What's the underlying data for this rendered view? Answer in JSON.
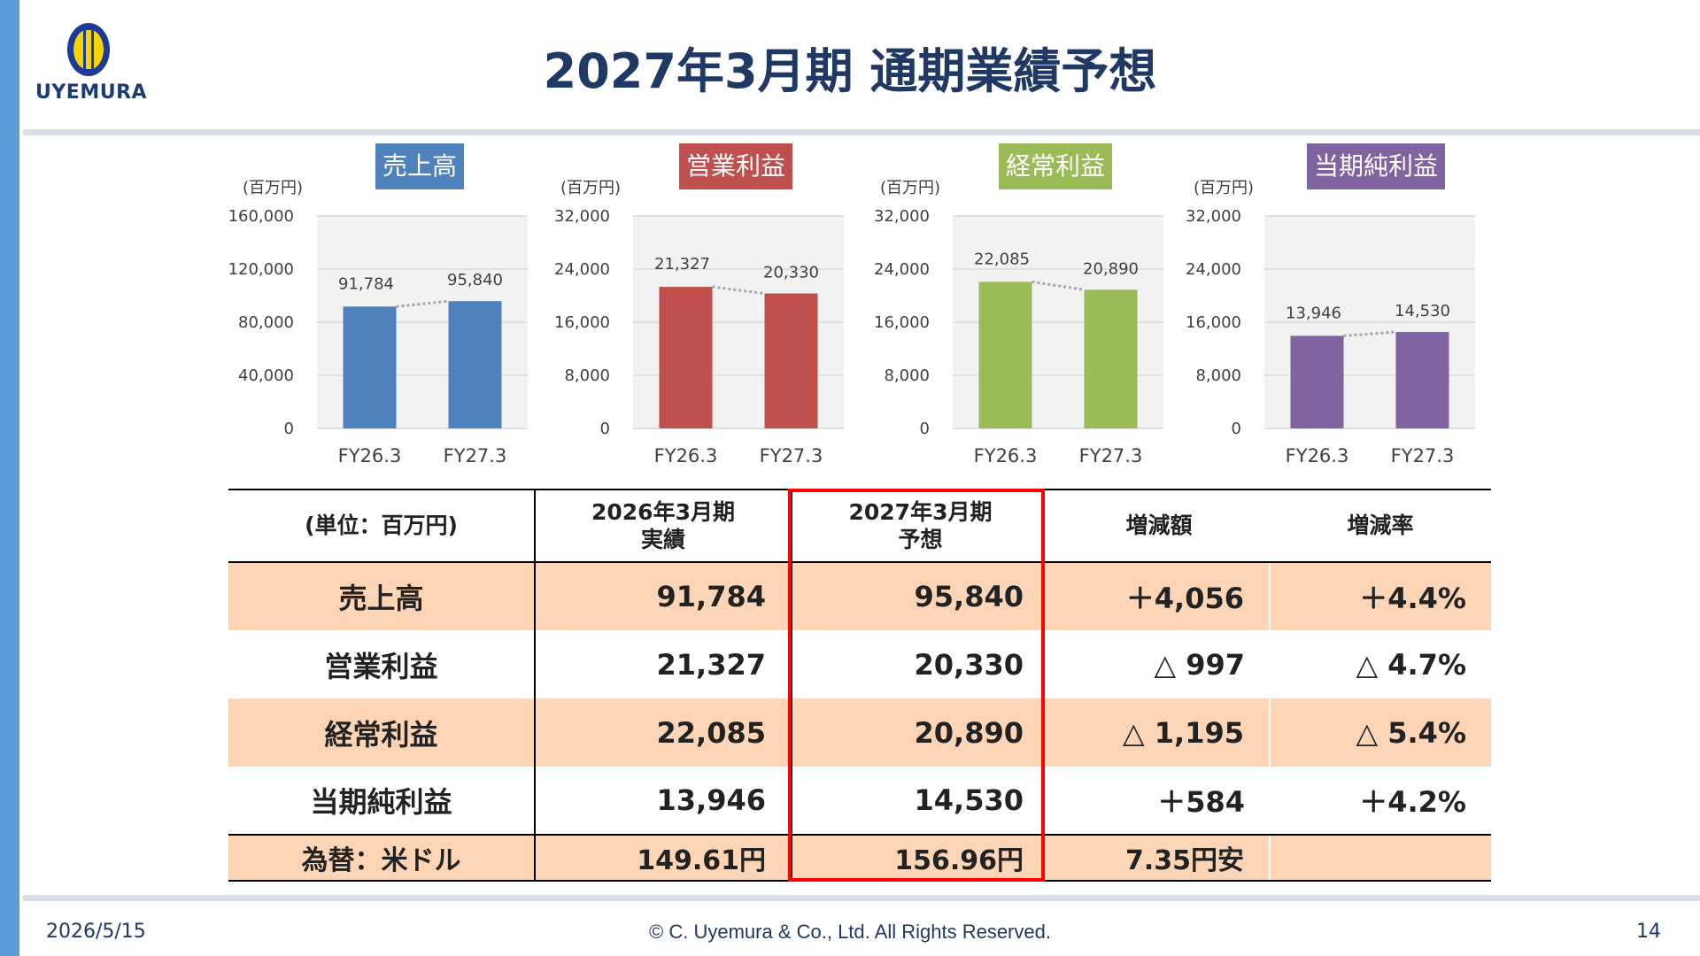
{
  "header": {
    "logo_text": "UYEMURA",
    "title": "2027年3月期 通期業績予想"
  },
  "colors": {
    "sales": "#4f81bd",
    "operating": "#c0504d",
    "ordinary": "#9bbb59",
    "net": "#8064a2",
    "accent_box": "#ff0000",
    "row_shade": "#fbd5b5"
  },
  "chart_data": [
    {
      "type": "bar",
      "title": "売上高",
      "unit": "(百万円)",
      "categories": [
        "FY26.3",
        "FY27.3"
      ],
      "values": [
        91784,
        95840
      ],
      "value_labels": [
        "91,784",
        "95,840"
      ],
      "ylim": [
        0,
        160000
      ],
      "yticks": [
        0,
        40000,
        80000,
        120000,
        160000
      ],
      "ytick_labels": [
        "0",
        "40,000",
        "80,000",
        "120,000",
        "160,000"
      ],
      "color": "#4f81bd",
      "grid": true,
      "connector": "dotted"
    },
    {
      "type": "bar",
      "title": "営業利益",
      "unit": "(百万円)",
      "categories": [
        "FY26.3",
        "FY27.3"
      ],
      "values": [
        21327,
        20330
      ],
      "value_labels": [
        "21,327",
        "20,330"
      ],
      "ylim": [
        0,
        32000
      ],
      "yticks": [
        0,
        8000,
        16000,
        24000,
        32000
      ],
      "ytick_labels": [
        "0",
        "8,000",
        "16,000",
        "24,000",
        "32,000"
      ],
      "color": "#c0504d",
      "grid": true,
      "connector": "dotted"
    },
    {
      "type": "bar",
      "title": "経常利益",
      "unit": "(百万円)",
      "categories": [
        "FY26.3",
        "FY27.3"
      ],
      "values": [
        22085,
        20890
      ],
      "value_labels": [
        "22,085",
        "20,890"
      ],
      "ylim": [
        0,
        32000
      ],
      "yticks": [
        0,
        8000,
        16000,
        24000,
        32000
      ],
      "ytick_labels": [
        "0",
        "8,000",
        "16,000",
        "24,000",
        "32,000"
      ],
      "color": "#9bbb59",
      "grid": true,
      "connector": "dotted"
    },
    {
      "type": "bar",
      "title": "当期純利益",
      "unit": "(百万円)",
      "categories": [
        "FY26.3",
        "FY27.3"
      ],
      "values": [
        13946,
        14530
      ],
      "value_labels": [
        "13,946",
        "14,530"
      ],
      "ylim": [
        0,
        32000
      ],
      "yticks": [
        0,
        8000,
        16000,
        24000,
        32000
      ],
      "ytick_labels": [
        "0",
        "8,000",
        "16,000",
        "24,000",
        "32,000"
      ],
      "color": "#8064a2",
      "grid": true,
      "connector": "dotted"
    }
  ],
  "table": {
    "headers": [
      "(単位：百万円)",
      "2026年3月期\n実績",
      "2027年3月期\n予想",
      "増減額",
      "増減率"
    ],
    "rows": [
      {
        "label": "売上高",
        "actual": "91,784",
        "forecast": "95,840",
        "change": "＋4,056",
        "rate": "＋4.4%"
      },
      {
        "label": "営業利益",
        "actual": "21,327",
        "forecast": "20,330",
        "change": "△ 997",
        "rate": "△ 4.7%"
      },
      {
        "label": "経常利益",
        "actual": "22,085",
        "forecast": "20,890",
        "change": "△ 1,195",
        "rate": "△ 5.4%"
      },
      {
        "label": "当期純利益",
        "actual": "13,946",
        "forecast": "14,530",
        "change": "＋584",
        "rate": "＋4.2%"
      },
      {
        "label": "為替：米ドル",
        "actual": "149.61円",
        "forecast": "156.96円",
        "change": "7.35円安",
        "rate": ""
      }
    ]
  },
  "footer": {
    "date": "2026/5/15",
    "copyright": "© C. Uyemura & Co., Ltd. All Rights Reserved.",
    "page": "14"
  }
}
